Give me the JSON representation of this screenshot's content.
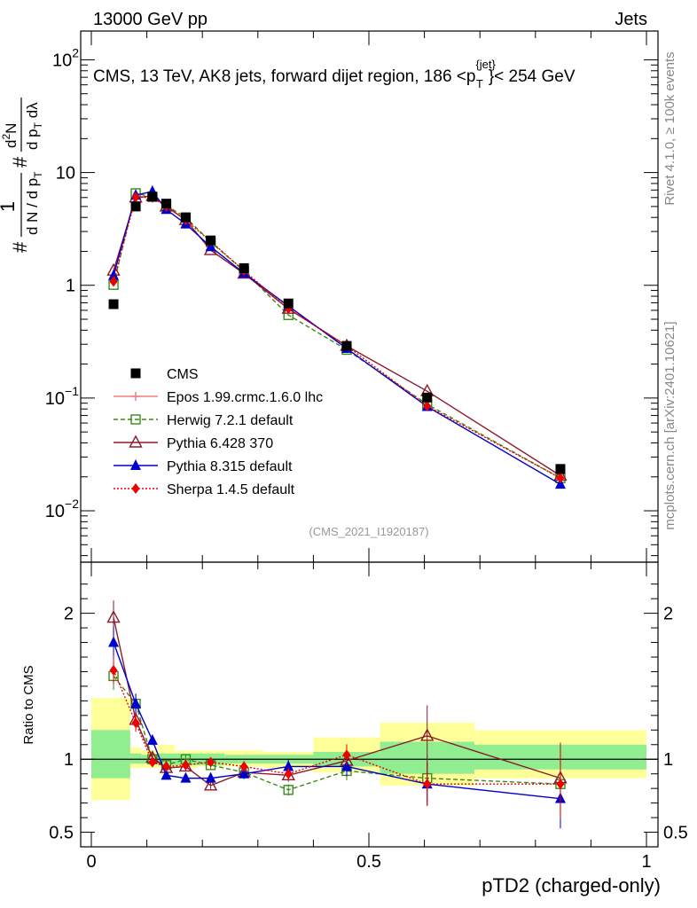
{
  "header": {
    "left": "13000 GeV pp",
    "right": "Jets",
    "title_main": "CMS, 13 TeV, AK8 jets, forward dijet region, 186 <p",
    "title_sup": "{jet}",
    "title_sub": "T",
    "title_end": "}< 254 GeV",
    "analysis_id": "(CMS_2021_I1920187)"
  },
  "side_labels": {
    "rivet": "Rivet 4.1.0, ≥ 100k events",
    "mcplots": "mcplots.cern.ch [arXiv:2401.10621]"
  },
  "axes": {
    "xlabel": "pTD2 (charged-only)",
    "ylabel_main": "# 1 / (dN/dp_T) # d²N / (dp_T dλ)",
    "ylabel_ratio": "Ratio to CMS",
    "ylabel_parts": {
      "hash1": "#",
      "num1": "1",
      "den1": "d N / d p",
      "den1_sub": "T",
      "hash2": "#",
      "num2_a": "d",
      "num2_sup": "2",
      "num2_b": "N",
      "den2": "d p",
      "den2_sub": "T",
      "den2_end": " dλ"
    },
    "x_ticks": [
      "0",
      "0.5",
      "1"
    ],
    "main_y_ticks": [
      {
        "base": "10",
        "exp": "−2",
        "value": 0.01
      },
      {
        "base": "10",
        "exp": "−1",
        "value": 0.1
      },
      {
        "base": "1",
        "exp": "",
        "value": 1
      },
      {
        "base": "10",
        "exp": "",
        "value": 10
      },
      {
        "base": "10",
        "exp": "2",
        "value": 100
      }
    ],
    "ratio_y_ticks": [
      "0.5",
      "1",
      "2"
    ]
  },
  "legend": [
    {
      "key": "cms",
      "label": "CMS"
    },
    {
      "key": "epos",
      "label": "Epos 1.99.crmc.1.6.0 lhc"
    },
    {
      "key": "herwig",
      "label": "Herwig 7.2.1 default"
    },
    {
      "key": "py6",
      "label": "Pythia 6.428 370"
    },
    {
      "key": "py8",
      "label": "Pythia 8.315 default"
    },
    {
      "key": "sherpa",
      "label": "Sherpa 1.4.5 default"
    }
  ],
  "colors": {
    "cms": "#000000",
    "epos": "#f08080",
    "herwig": "#3a8a1a",
    "py6": "#8b1a2a",
    "py8": "#0000cc",
    "sherpa": "#ee0000",
    "band_inner": "#90ee90",
    "band_outer": "#ffff99"
  },
  "chart_data": {
    "type": "line",
    "title": "CMS, 13 TeV, AK8 jets, forward dijet region, 186 < pT(jet) < 254 GeV",
    "xlabel": "pTD2 (charged-only)",
    "ylabel": "1/(dN/dpT) d2N/(dpT dlambda)",
    "yscale": "log",
    "xlim": [
      -0.02,
      1.02
    ],
    "ylim": [
      0.0035,
      180
    ],
    "ratio_ylim": [
      0.4,
      2.35
    ],
    "x": [
      0.04,
      0.08,
      0.11,
      0.135,
      0.17,
      0.215,
      0.275,
      0.355,
      0.46,
      0.605,
      0.845
    ],
    "bin_edges": [
      0,
      0.07,
      0.09,
      0.12,
      0.15,
      0.19,
      0.24,
      0.31,
      0.4,
      0.52,
      0.69,
      1.0
    ],
    "cms": [
      0.68,
      5.0,
      6.1,
      5.3,
      4.0,
      2.5,
      1.42,
      0.69,
      0.29,
      0.101,
      0.0235
    ],
    "series": [
      {
        "key": "herwig",
        "name": "Herwig 7.2.1 default",
        "values": [
          1.01,
          6.55,
          6.1,
          5.1,
          4.0,
          2.42,
          1.34,
          0.545,
          0.268,
          0.088,
          0.0195
        ]
      },
      {
        "key": "py6",
        "name": "Pythia 6.428 370",
        "values": [
          1.35,
          6.0,
          6.2,
          5.0,
          3.8,
          2.05,
          1.27,
          0.62,
          0.29,
          0.115,
          0.0205
        ]
      },
      {
        "key": "py8",
        "name": "Pythia 8.315 default",
        "values": [
          1.22,
          6.3,
          6.8,
          4.7,
          3.5,
          2.2,
          1.28,
          0.655,
          0.275,
          0.084,
          0.0172
        ]
      },
      {
        "key": "sherpa",
        "name": "Sherpa 1.4.5 default",
        "values": [
          1.08,
          6.05,
          6.0,
          5.0,
          3.8,
          2.45,
          1.35,
          0.62,
          0.29,
          0.085,
          0.0195
        ]
      }
    ],
    "ratio_series": [
      {
        "key": "herwig",
        "values": [
          1.57,
          1.38,
          1.0,
          0.96,
          1.0,
          0.96,
          0.91,
          0.79,
          0.92,
          0.87,
          0.83
        ]
      },
      {
        "key": "py6",
        "values": [
          1.97,
          1.27,
          1.01,
          0.94,
          0.95,
          0.82,
          0.91,
          0.89,
          0.99,
          1.16,
          0.87
        ]
      },
      {
        "key": "py8",
        "values": [
          1.8,
          1.38,
          1.13,
          0.89,
          0.87,
          0.87,
          0.9,
          0.95,
          0.95,
          0.83,
          0.73
        ]
      },
      {
        "key": "sherpa",
        "values": [
          1.61,
          1.25,
          0.98,
          0.95,
          0.96,
          0.98,
          0.95,
          0.9,
          1.03,
          0.83,
          0.83
        ]
      }
    ],
    "ratio_errors": [
      0.06,
      0.05,
      0.03,
      0.03,
      0.03,
      0.03,
      0.04,
      0.05,
      0.07,
      0.18,
      0.28
    ],
    "band_inner": [
      [
        0.87,
        1.2
      ],
      [
        0.97,
        1.04
      ],
      [
        0.97,
        1.03
      ],
      [
        0.96,
        1.04
      ],
      [
        0.96,
        1.04
      ],
      [
        0.96,
        1.04
      ],
      [
        0.97,
        1.03
      ],
      [
        0.97,
        1.03
      ],
      [
        0.95,
        1.05
      ],
      [
        0.9,
        1.12
      ],
      [
        0.93,
        1.1
      ]
    ],
    "band_outer": [
      [
        0.72,
        1.42
      ],
      [
        0.94,
        1.08
      ],
      [
        0.94,
        1.06
      ],
      [
        0.94,
        1.1
      ],
      [
        0.94,
        1.06
      ],
      [
        0.95,
        1.06
      ],
      [
        0.95,
        1.06
      ],
      [
        0.94,
        1.05
      ],
      [
        0.91,
        1.15
      ],
      [
        0.82,
        1.25
      ],
      [
        0.87,
        1.2
      ]
    ]
  }
}
